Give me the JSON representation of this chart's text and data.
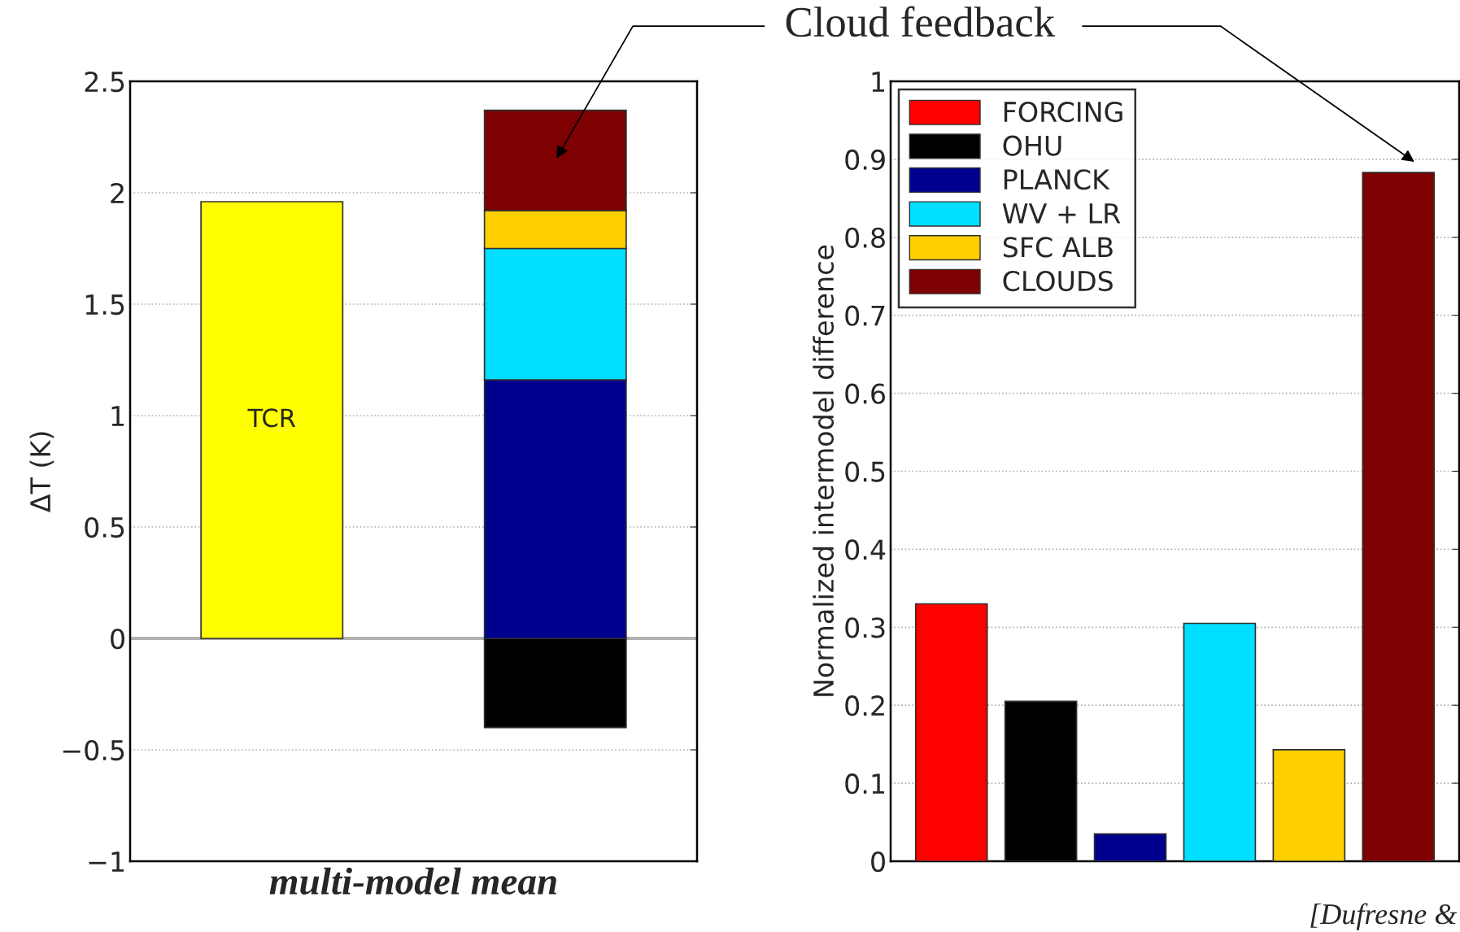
{
  "chart_data": [
    {
      "type": "bar",
      "stacked": true,
      "categories": [
        null,
        null
      ],
      "xlabel": "multi-model mean",
      "ylabel": "ΔT (K)",
      "ylim": [
        -1,
        2.5
      ],
      "yticks": [
        {
          "value": -1,
          "label": "−1"
        },
        {
          "value": -0.5,
          "label": "−0.5"
        },
        0,
        0.5,
        1,
        1.5,
        2,
        2.5
      ],
      "grid": "y",
      "ref_lines": [
        {
          "axis": "y",
          "value": 0,
          "color": "#b0b0b0"
        }
      ],
      "annotations": [
        "Cloud feedback"
      ],
      "series": [
        {
          "color": "#ffff00",
          "values": [
            1.96,
            null
          ],
          "value_labels": [
            "TCR",
            null
          ]
        },
        {
          "color": "#000000",
          "values": [
            null,
            -0.4
          ]
        },
        {
          "color": "#00008f",
          "values": [
            null,
            1.16
          ]
        },
        {
          "color": "#00dfff",
          "values": [
            null,
            0.59
          ]
        },
        {
          "color": "#ffcf00",
          "values": [
            null,
            0.17
          ]
        },
        {
          "color": "#7f0000",
          "values": [
            null,
            0.45
          ]
        }
      ]
    },
    {
      "type": "bar",
      "categories": [
        null,
        null,
        null,
        null,
        null,
        null
      ],
      "ylabel": "Normalized intermodel difference",
      "ylim": [
        0,
        1
      ],
      "yticks": [
        0,
        0.1,
        0.2,
        0.3,
        0.4,
        0.5,
        0.6,
        0.7,
        0.8,
        0.9,
        1
      ],
      "grid": "y",
      "legend": "top left",
      "annotations": [
        "[Dufresne &"
      ],
      "series": [
        {
          "name": "FORCING",
          "color": "#ff0000",
          "values": [
            0.33,
            null,
            null,
            null,
            null,
            null
          ]
        },
        {
          "name": "OHU",
          "color": "#000000",
          "values": [
            null,
            0.205,
            null,
            null,
            null,
            null
          ]
        },
        {
          "name": "PLANCK",
          "color": "#00008f",
          "values": [
            null,
            null,
            0.035,
            null,
            null,
            null
          ]
        },
        {
          "name": "WV + LR",
          "color": "#00dfff",
          "values": [
            null,
            null,
            null,
            0.305,
            null,
            null
          ]
        },
        {
          "name": "SFC ALB",
          "color": "#ffcf00",
          "values": [
            null,
            null,
            null,
            null,
            0.143,
            null
          ]
        },
        {
          "name": "CLOUDS",
          "color": "#7f0000",
          "values": [
            null,
            null,
            null,
            null,
            null,
            0.883
          ]
        }
      ]
    }
  ]
}
